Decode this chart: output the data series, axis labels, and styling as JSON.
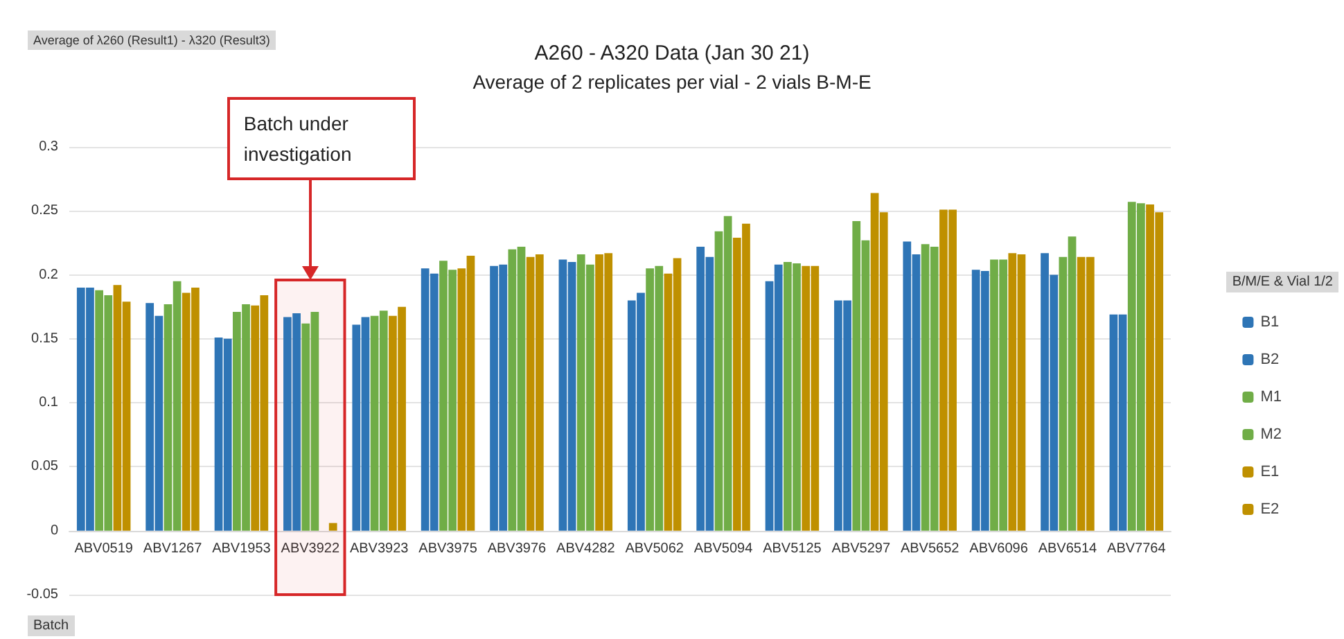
{
  "chart_data": {
    "type": "bar",
    "title": "A260 - A320 Data (Jan 30 21)",
    "subtitle": "Average of 2 replicates per vial - 2 vials B-M-E",
    "legend_title": "B/M/E & Vial 1/2",
    "categories": [
      "ABV0519",
      "ABV1267",
      "ABV1953",
      "ABV3922",
      "ABV3923",
      "ABV3975",
      "ABV3976",
      "ABV4282",
      "ABV5062",
      "ABV5094",
      "ABV5125",
      "ABV5297",
      "ABV5652",
      "ABV6096",
      "ABV6514",
      "ABV7764"
    ],
    "series": [
      {
        "name": "B1",
        "color": "#2e75b6",
        "values": [
          0.19,
          0.178,
          0.151,
          0.167,
          0.161,
          0.205,
          0.207,
          0.212,
          0.18,
          0.222,
          0.195,
          0.18,
          0.226,
          0.204,
          0.217,
          0.169
        ]
      },
      {
        "name": "B2",
        "color": "#2e75b6",
        "values": [
          0.19,
          0.168,
          0.15,
          0.17,
          0.167,
          0.201,
          0.208,
          0.21,
          0.186,
          0.214,
          0.208,
          0.18,
          0.216,
          0.203,
          0.2,
          0.169
        ]
      },
      {
        "name": "M1",
        "color": "#70ad47",
        "values": [
          0.188,
          0.177,
          0.171,
          0.162,
          0.168,
          0.211,
          0.22,
          0.216,
          0.205,
          0.234,
          0.21,
          0.242,
          0.224,
          0.212,
          0.214,
          0.257
        ]
      },
      {
        "name": "M2",
        "color": "#70ad47",
        "values": [
          0.184,
          0.195,
          0.177,
          0.171,
          0.172,
          0.204,
          0.222,
          0.208,
          0.207,
          0.246,
          0.209,
          0.227,
          0.222,
          0.212,
          0.23,
          0.256
        ]
      },
      {
        "name": "E1",
        "color": "#bf9000",
        "values": [
          0.192,
          0.186,
          0.176,
          null,
          0.168,
          0.205,
          0.214,
          0.216,
          0.201,
          0.229,
          0.207,
          0.264,
          0.251,
          0.217,
          0.214,
          0.255
        ]
      },
      {
        "name": "E2",
        "color": "#bf9000",
        "values": [
          0.179,
          0.19,
          0.184,
          0.006,
          0.175,
          0.215,
          0.216,
          0.217,
          0.213,
          0.24,
          0.207,
          0.249,
          0.251,
          0.216,
          0.214,
          0.249
        ]
      }
    ],
    "bands": [
      {
        "axis": "x",
        "from": "ABV3922",
        "to": "ABV3922",
        "color": "#d62728"
      }
    ],
    "ylim": [
      -0.05,
      0.3
    ],
    "yticks": [
      -0.05,
      0,
      0.05,
      0.1,
      0.15,
      0.2,
      0.25,
      0.3
    ],
    "grid": "y",
    "legend": "right",
    "annotations": [
      "Batch under investigation",
      "Average of λ260 (Result1) - λ320 (Result3)",
      "Batch"
    ]
  }
}
